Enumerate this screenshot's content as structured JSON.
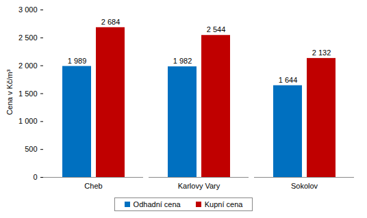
{
  "chart_data": {
    "type": "bar",
    "categories": [
      "Cheb",
      "Karlovy Vary",
      "Sokolov"
    ],
    "series": [
      {
        "name": "Odhadní cena",
        "color": "#0070c0",
        "values": [
          1989,
          1982,
          1644
        ],
        "value_labels": [
          "1 989",
          "1 982",
          "1 644"
        ]
      },
      {
        "name": "Kupní cena",
        "color": "#c00000",
        "values": [
          2684,
          2544,
          2132
        ],
        "value_labels": [
          "2 684",
          "2 544",
          "2 132"
        ]
      }
    ],
    "y_label": "Cena v Kč/m³",
    "ylim": [
      0,
      3000
    ],
    "yticks": [
      0,
      500,
      {
        "value": 1000,
        "label": "1 000"
      },
      {
        "value": 1500,
        "label": "1 500"
      },
      {
        "value": 2000,
        "label": "2 000"
      },
      {
        "value": 2500,
        "label": "2 500"
      },
      {
        "value": 3000,
        "label": "3 000"
      }
    ],
    "grid": false,
    "legend": "bottom",
    "data_labels": true
  }
}
